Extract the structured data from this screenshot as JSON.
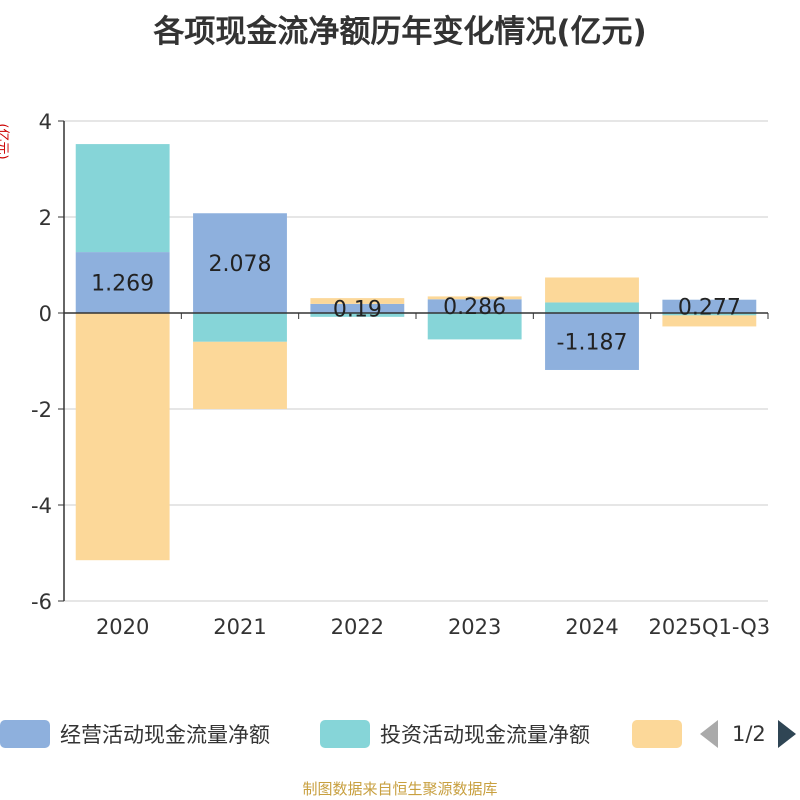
{
  "chart_data": {
    "type": "bar",
    "stacked": true,
    "title": "各项现金流净额历年变化情况(亿元)",
    "ylabel": "(亿元)",
    "ylim": [
      -6,
      4
    ],
    "yticks": [
      4,
      2,
      0,
      -2,
      -4,
      -6
    ],
    "categories": [
      "2020",
      "2021",
      "2022",
      "2023",
      "2024",
      "2025Q1-Q3"
    ],
    "series": [
      {
        "name": "经营活动现金流量净额",
        "color": "#8eb0dd",
        "values": [
          1.269,
          2.078,
          0.19,
          0.286,
          -1.187,
          0.277
        ]
      },
      {
        "name": "投资活动现金流量净额",
        "color": "#86d5d8",
        "values": [
          2.25,
          -0.6,
          -0.08,
          -0.55,
          0.22,
          -0.05
        ]
      },
      {
        "name": "",
        "color": "#fcd899",
        "values": [
          -5.15,
          -1.4,
          0.12,
          0.06,
          0.52,
          -0.23
        ]
      }
    ],
    "data_labels": [
      "1.269",
      "2.078",
      "0.19",
      "0.286",
      "-1.187",
      "0.277"
    ],
    "legend_position": "bottom"
  },
  "legend": {
    "pager_text": "1/2"
  },
  "footer": {
    "source": "制图数据来自恒生聚源数据库"
  }
}
